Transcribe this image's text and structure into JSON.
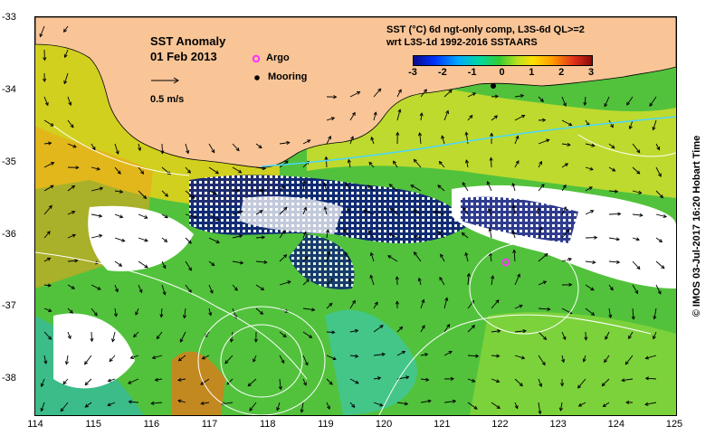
{
  "map": {
    "title": "SST Anomaly",
    "date": "01 Feb 2013",
    "scale_label": "0.5 m/s",
    "legend": {
      "argo_label": "Argo",
      "mooring_label": "Mooring"
    },
    "product_line1": "SST (°C) 6d ngt-only comp, L3S-6d QL>=2",
    "product_line2": "wrt L3S-1d 1992-2016 SSTAARS",
    "colorbar_ticks": [
      "-3",
      "-2",
      "-1",
      "0",
      "1",
      "2",
      "3"
    ],
    "colorbar_range": [
      -3,
      3
    ],
    "x_ticks": [
      "114",
      "115",
      "116",
      "117",
      "118",
      "119",
      "120",
      "121",
      "122",
      "123",
      "124",
      "125"
    ],
    "y_ticks": [
      "-33",
      "-34",
      "-35",
      "-36",
      "-37",
      "-38"
    ],
    "credit": "© IMOS 03-Jul-2017 16:20 Hobart Time",
    "colors": {
      "land": "#f9c597",
      "ocean_base": "#4fbf3a",
      "warm": "#f2c200",
      "cold": "#0a1a7a",
      "argo": "#ff33ff",
      "no_data": "#ffffff"
    }
  }
}
